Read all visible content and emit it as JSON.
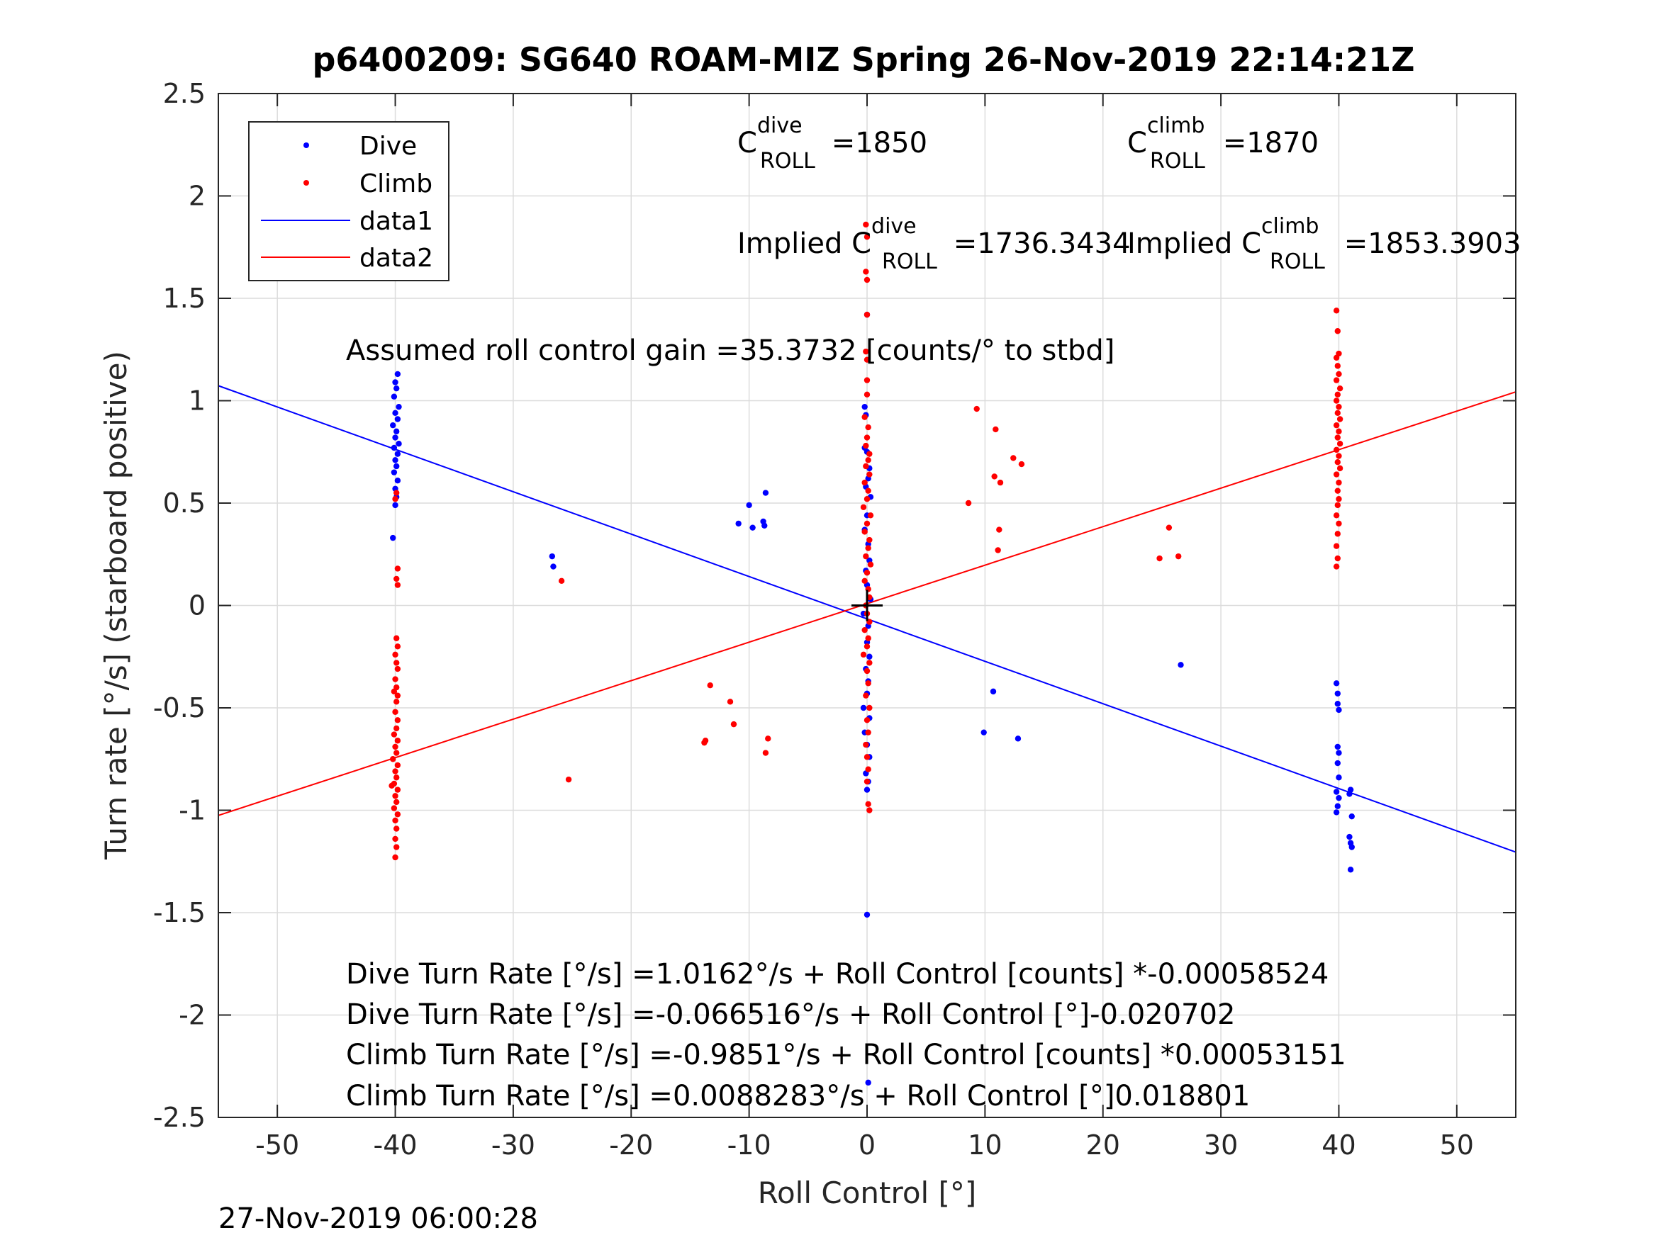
{
  "chart_data": {
    "type": "scatter",
    "title": "p6400209: SG640 ROAM-MIZ Spring 26-Nov-2019 22:14:21Z",
    "xlabel": "Roll Control [°]",
    "ylabel": "Turn rate [°/s] (starboard positive)",
    "xlim": [
      -55,
      55
    ],
    "ylim": [
      -2.5,
      2.5
    ],
    "xticks": [
      -50,
      -40,
      -30,
      -20,
      -10,
      0,
      10,
      20,
      30,
      40,
      50
    ],
    "xtick_labels": [
      "-50",
      "-40",
      "-30",
      "-20",
      "-10",
      "0",
      "10",
      "20",
      "30",
      "40",
      "50"
    ],
    "yticks": [
      2.5,
      2,
      1.5,
      1,
      0.5,
      0,
      -0.5,
      -1,
      -1.5,
      -2,
      -2.5
    ],
    "ytick_labels": [
      "2.5",
      "2",
      "1.5",
      "1",
      "0.5",
      "0",
      "-0.5",
      "-1",
      "-1.5",
      "-2",
      "-2.5"
    ],
    "grid": true,
    "legend_position": "top-left",
    "timestamp": "27-Nov-2019 06:00:28",
    "colors": {
      "dive": "#0000ff",
      "climb": "#ff0000",
      "axes": "#262626",
      "grid": "#dcdcdc"
    },
    "series": [
      {
        "name": "Dive",
        "kind": "points",
        "color": "#0000ff",
        "points": [
          [
            -39.8,
            1.13
          ],
          [
            -40.0,
            1.09
          ],
          [
            -39.9,
            1.06
          ],
          [
            -40.1,
            1.02
          ],
          [
            -39.7,
            0.97
          ],
          [
            -40.0,
            0.94
          ],
          [
            -39.8,
            0.91
          ],
          [
            -40.2,
            0.88
          ],
          [
            -39.9,
            0.85
          ],
          [
            -40.0,
            0.82
          ],
          [
            -39.7,
            0.79
          ],
          [
            -40.1,
            0.77
          ],
          [
            -39.8,
            0.74
          ],
          [
            -40.0,
            0.71
          ],
          [
            -39.9,
            0.68
          ],
          [
            -40.1,
            0.65
          ],
          [
            -39.8,
            0.61
          ],
          [
            -40.0,
            0.57
          ],
          [
            -39.9,
            0.53
          ],
          [
            -40.0,
            0.49
          ],
          [
            -40.2,
            0.33
          ],
          [
            -26.7,
            0.24
          ],
          [
            -26.6,
            0.19
          ],
          [
            -10.9,
            0.4
          ],
          [
            -10.0,
            0.49
          ],
          [
            -9.7,
            0.38
          ],
          [
            -8.8,
            0.41
          ],
          [
            -8.7,
            0.39
          ],
          [
            -8.6,
            0.55
          ],
          [
            0.0,
            1.42
          ],
          [
            -0.2,
            0.97
          ],
          [
            -0.1,
            0.93
          ],
          [
            -0.2,
            0.77
          ],
          [
            0.0,
            0.75
          ],
          [
            0.2,
            0.67
          ],
          [
            0.1,
            0.62
          ],
          [
            -0.1,
            0.58
          ],
          [
            0.3,
            0.53
          ],
          [
            0.0,
            0.44
          ],
          [
            -0.2,
            0.37
          ],
          [
            0.1,
            0.3
          ],
          [
            0.2,
            0.22
          ],
          [
            -0.1,
            0.17
          ],
          [
            0.0,
            0.1
          ],
          [
            0.3,
            0.03
          ],
          [
            -0.3,
            -0.04
          ],
          [
            0.1,
            -0.1
          ],
          [
            0.0,
            -0.18
          ],
          [
            0.2,
            -0.25
          ],
          [
            -0.1,
            -0.31
          ],
          [
            0.1,
            -0.37
          ],
          [
            0.0,
            -0.43
          ],
          [
            -0.3,
            -0.5
          ],
          [
            0.2,
            -0.55
          ],
          [
            -0.2,
            -0.62
          ],
          [
            0.0,
            -0.68
          ],
          [
            0.2,
            -0.74
          ],
          [
            -0.1,
            -0.82
          ],
          [
            0.1,
            -0.86
          ],
          [
            0.0,
            -0.9
          ],
          [
            0.0,
            -1.51
          ],
          [
            0.1,
            -2.33
          ],
          [
            10.7,
            -0.42
          ],
          [
            9.9,
            -0.62
          ],
          [
            12.8,
            -0.65
          ],
          [
            26.6,
            -0.29
          ],
          [
            39.8,
            -0.38
          ],
          [
            39.9,
            -0.43
          ],
          [
            39.9,
            -0.48
          ],
          [
            40.0,
            -0.51
          ],
          [
            39.9,
            -0.69
          ],
          [
            40.0,
            -0.72
          ],
          [
            39.9,
            -0.77
          ],
          [
            40.0,
            -0.84
          ],
          [
            39.8,
            -0.91
          ],
          [
            40.0,
            -0.94
          ],
          [
            39.9,
            -0.98
          ],
          [
            39.8,
            -1.01
          ],
          [
            41.0,
            -0.9
          ],
          [
            40.9,
            -0.92
          ],
          [
            41.1,
            -1.03
          ],
          [
            40.9,
            -1.13
          ],
          [
            41.0,
            -1.16
          ],
          [
            41.1,
            -1.18
          ],
          [
            41.0,
            -1.29
          ]
        ]
      },
      {
        "name": "Climb",
        "kind": "points",
        "color": "#ff0000",
        "points": [
          [
            -39.9,
            0.55
          ],
          [
            -40.0,
            0.52
          ],
          [
            -39.8,
            0.18
          ],
          [
            -39.9,
            0.13
          ],
          [
            -39.8,
            0.1
          ],
          [
            -39.9,
            -0.16
          ],
          [
            -39.8,
            -0.2
          ],
          [
            -40.0,
            -0.24
          ],
          [
            -39.9,
            -0.28
          ],
          [
            -39.8,
            -0.31
          ],
          [
            -40.0,
            -0.36
          ],
          [
            -39.9,
            -0.4
          ],
          [
            -40.1,
            -0.42
          ],
          [
            -39.8,
            -0.44
          ],
          [
            -39.9,
            -0.47
          ],
          [
            -40.0,
            -0.52
          ],
          [
            -39.8,
            -0.56
          ],
          [
            -39.9,
            -0.6
          ],
          [
            -40.1,
            -0.63
          ],
          [
            -39.8,
            -0.66
          ],
          [
            -40.0,
            -0.69
          ],
          [
            -39.9,
            -0.72
          ],
          [
            -40.2,
            -0.75
          ],
          [
            -39.8,
            -0.78
          ],
          [
            -40.0,
            -0.81
          ],
          [
            -39.9,
            -0.84
          ],
          [
            -40.1,
            -0.87
          ],
          [
            -40.3,
            -0.88
          ],
          [
            -39.8,
            -0.9
          ],
          [
            -40.0,
            -0.93
          ],
          [
            -39.9,
            -0.96
          ],
          [
            -40.1,
            -0.99
          ],
          [
            -39.8,
            -1.02
          ],
          [
            -40.0,
            -1.05
          ],
          [
            -39.9,
            -1.09
          ],
          [
            -40.0,
            -1.14
          ],
          [
            -39.9,
            -1.18
          ],
          [
            -40.0,
            -1.23
          ],
          [
            -25.9,
            0.12
          ],
          [
            -25.3,
            -0.85
          ],
          [
            -13.8,
            -0.67
          ],
          [
            -13.7,
            -0.66
          ],
          [
            -13.3,
            -0.39
          ],
          [
            -11.6,
            -0.47
          ],
          [
            -11.3,
            -0.58
          ],
          [
            -8.6,
            -0.72
          ],
          [
            -8.4,
            -0.65
          ],
          [
            -0.1,
            1.86
          ],
          [
            0.0,
            1.8
          ],
          [
            -0.1,
            1.63
          ],
          [
            0.0,
            1.59
          ],
          [
            0.0,
            1.42
          ],
          [
            -0.1,
            1.24
          ],
          [
            0.0,
            1.2
          ],
          [
            0.0,
            1.1
          ],
          [
            0.0,
            1.03
          ],
          [
            -0.2,
            0.92
          ],
          [
            0.1,
            0.87
          ],
          [
            0.0,
            0.82
          ],
          [
            -0.1,
            0.78
          ],
          [
            0.2,
            0.74
          ],
          [
            0.1,
            0.71
          ],
          [
            -0.1,
            0.68
          ],
          [
            0.2,
            0.64
          ],
          [
            -0.2,
            0.6
          ],
          [
            0.1,
            0.56
          ],
          [
            0.0,
            0.52
          ],
          [
            -0.3,
            0.48
          ],
          [
            0.3,
            0.44
          ],
          [
            0.0,
            0.4
          ],
          [
            -0.2,
            0.36
          ],
          [
            0.2,
            0.32
          ],
          [
            0.1,
            0.28
          ],
          [
            -0.1,
            0.24
          ],
          [
            0.3,
            0.2
          ],
          [
            0.0,
            0.16
          ],
          [
            -0.2,
            0.12
          ],
          [
            0.1,
            0.08
          ],
          [
            0.2,
            0.04
          ],
          [
            -0.1,
            0.0
          ],
          [
            0.0,
            -0.04
          ],
          [
            0.2,
            -0.08
          ],
          [
            -0.2,
            -0.12
          ],
          [
            0.1,
            -0.16
          ],
          [
            0.0,
            -0.2
          ],
          [
            -0.3,
            -0.24
          ],
          [
            0.2,
            -0.28
          ],
          [
            0.0,
            -0.32
          ],
          [
            0.1,
            -0.38
          ],
          [
            -0.1,
            -0.44
          ],
          [
            0.2,
            -0.5
          ],
          [
            0.0,
            -0.56
          ],
          [
            0.1,
            -0.62
          ],
          [
            -0.1,
            -0.68
          ],
          [
            0.0,
            -0.74
          ],
          [
            0.1,
            -0.8
          ],
          [
            0.0,
            -0.86
          ],
          [
            0.1,
            -0.97
          ],
          [
            0.2,
            -1.0
          ],
          [
            8.6,
            0.5
          ],
          [
            9.3,
            0.96
          ],
          [
            10.9,
            0.86
          ],
          [
            10.8,
            0.63
          ],
          [
            11.3,
            0.6
          ],
          [
            12.4,
            0.72
          ],
          [
            13.1,
            0.69
          ],
          [
            11.2,
            0.37
          ],
          [
            11.1,
            0.27
          ],
          [
            24.8,
            0.23
          ],
          [
            25.6,
            0.38
          ],
          [
            26.4,
            0.24
          ],
          [
            39.8,
            1.44
          ],
          [
            39.9,
            1.34
          ],
          [
            40.0,
            1.23
          ],
          [
            39.8,
            1.21
          ],
          [
            39.9,
            1.17
          ],
          [
            40.0,
            1.13
          ],
          [
            39.8,
            1.1
          ],
          [
            40.1,
            1.06
          ],
          [
            39.9,
            1.03
          ],
          [
            39.8,
            1.0
          ],
          [
            40.0,
            0.97
          ],
          [
            39.9,
            0.94
          ],
          [
            40.1,
            0.91
          ],
          [
            39.8,
            0.88
          ],
          [
            40.0,
            0.85
          ],
          [
            39.9,
            0.82
          ],
          [
            40.1,
            0.79
          ],
          [
            39.8,
            0.76
          ],
          [
            40.0,
            0.73
          ],
          [
            39.9,
            0.7
          ],
          [
            40.1,
            0.67
          ],
          [
            39.8,
            0.64
          ],
          [
            40.0,
            0.6
          ],
          [
            39.9,
            0.56
          ],
          [
            40.0,
            0.52
          ],
          [
            39.9,
            0.49
          ],
          [
            39.8,
            0.44
          ],
          [
            40.0,
            0.4
          ],
          [
            39.9,
            0.35
          ],
          [
            39.8,
            0.29
          ],
          [
            39.9,
            0.23
          ],
          [
            39.8,
            0.19
          ]
        ]
      },
      {
        "name": "data1",
        "kind": "line",
        "color": "#0000ff",
        "x": [
          -55,
          55
        ],
        "y": [
          1.0731,
          -1.2044
        ]
      },
      {
        "name": "data2",
        "kind": "line",
        "color": "#ff0000",
        "x": [
          -55,
          55
        ],
        "y": [
          -1.0252,
          1.0429
        ]
      }
    ],
    "center_marker": {
      "x": 0,
      "y": 0
    },
    "annotations": {
      "c_dive_base": "C",
      "c_dive_sup": "dive",
      "c_dive_sub": "ROLL",
      "c_dive_val": " =1850",
      "c_climb_base": "C",
      "c_climb_sup": "climb",
      "c_climb_sub": "ROLL",
      "c_climb_val": " =1870",
      "implied_dive_pre": "Implied C",
      "implied_dive_sup": "dive",
      "implied_dive_sub": "ROLL",
      "implied_dive_val": " =1736.3434",
      "implied_climb_pre": "Implied C",
      "implied_climb_sup": "climb",
      "implied_climb_sub": "ROLL",
      "implied_climb_val": " =1853.3903",
      "gain": "Assumed roll control gain =35.3732 [counts/° to stbd]",
      "fit1": "Dive Turn Rate [°/s] =1.0162°/s + Roll Control [counts] *-0.00058524",
      "fit2": "Dive Turn Rate [°/s] =-0.066516°/s + Roll Control [°]-0.020702",
      "fit3": "Climb Turn Rate [°/s] =-0.9851°/s + Roll Control [counts] *0.00053151",
      "fit4": "Climb Turn Rate [°/s] =0.0088283°/s + Roll Control [°]0.018801"
    }
  }
}
